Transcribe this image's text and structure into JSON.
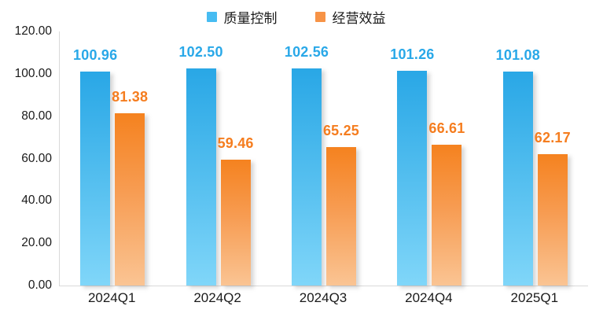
{
  "chart_data": {
    "type": "bar",
    "title": "",
    "categories": [
      "2024Q1",
      "2024Q2",
      "2024Q3",
      "2024Q4",
      "2025Q1"
    ],
    "series": [
      {
        "key": "quality-control",
        "name": "质量控制",
        "values": [
          100.96,
          102.5,
          102.56,
          101.26,
          101.08
        ],
        "labels": [
          "100.96",
          "102.50",
          "102.56",
          "101.26",
          "101.08"
        ],
        "swatch_color": "#47bcf2",
        "bar_color_top": "#29a7e6",
        "bar_color_bottom": "#80d6f9",
        "label_color": "#29a8e8"
      },
      {
        "key": "operating-benefit",
        "name": "经营效益",
        "values": [
          81.38,
          59.46,
          65.25,
          66.61,
          62.17
        ],
        "labels": [
          "81.38",
          "59.46",
          "65.25",
          "66.61",
          "62.17"
        ],
        "swatch_color": "#f79346",
        "bar_color_top": "#f5821f",
        "bar_color_bottom": "#fac493",
        "label_color": "#f57d1f"
      }
    ],
    "xlabel": "",
    "ylabel": "",
    "ylim": [
      0,
      120
    ],
    "yticks": [
      "120.00",
      "100.00",
      "80.00",
      "60.00",
      "40.00",
      "20.00",
      "0.00"
    ],
    "grid": false,
    "legend_position": "top",
    "axis_line_color": "#d9d9d9"
  }
}
